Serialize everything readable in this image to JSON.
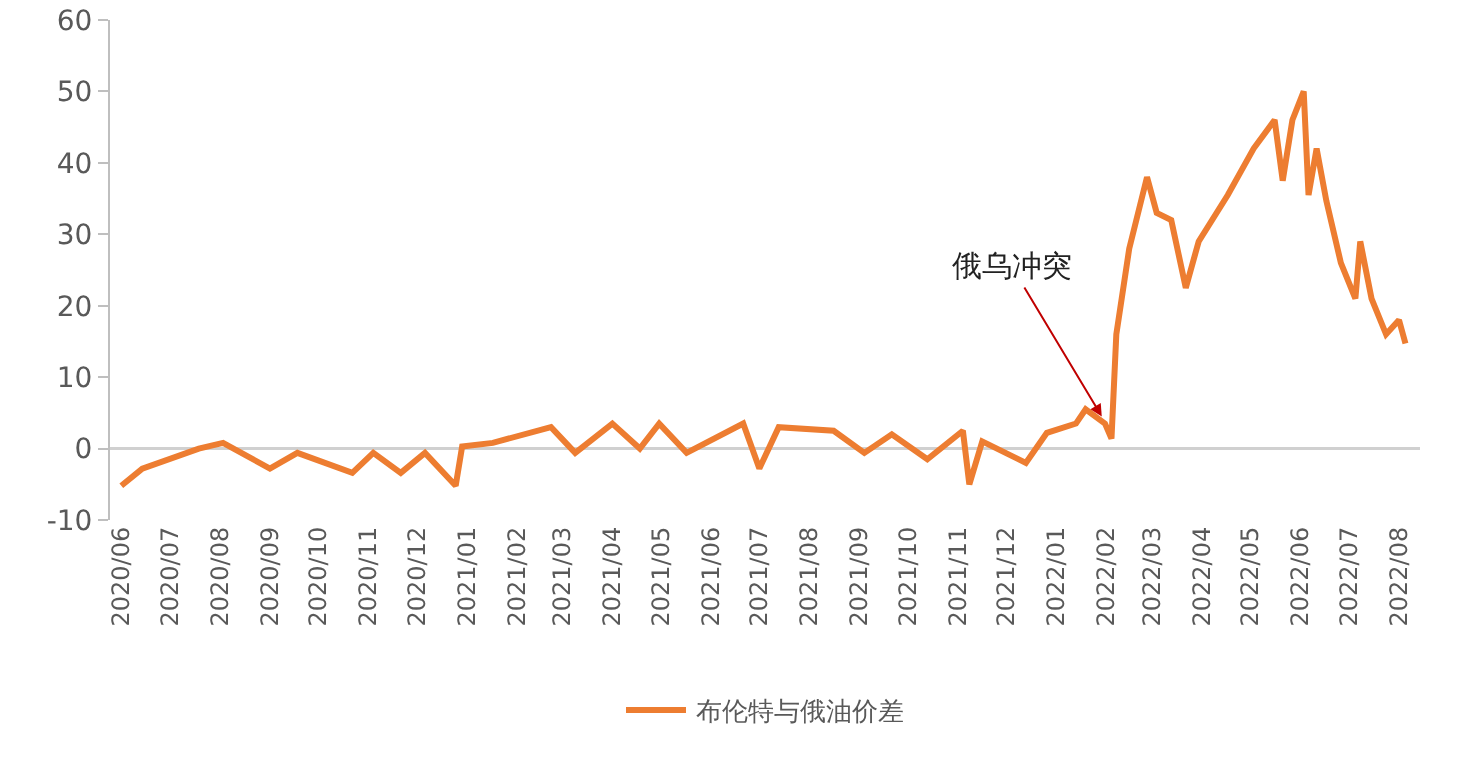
{
  "chart_data": {
    "type": "line",
    "legend": "bottom",
    "grid": false,
    "marker": "none",
    "line_style": "solid",
    "x": [
      "2020-06-15",
      "2020-06-28",
      "2020-08-02",
      "2020-08-17",
      "2020-09-15",
      "2020-10-02",
      "2020-11-05",
      "2020-11-18",
      "2020-12-05",
      "2020-12-20",
      "2021-01-08",
      "2021-01-12",
      "2021-01-31",
      "2021-03-08",
      "2021-03-23",
      "2021-04-15",
      "2021-05-02",
      "2021-05-14",
      "2021-05-31",
      "2021-07-05",
      "2021-07-15",
      "2021-07-27",
      "2021-08-30",
      "2021-09-18",
      "2021-10-05",
      "2021-10-27",
      "2021-11-18",
      "2021-11-22",
      "2021-11-30",
      "2021-12-27",
      "2022-01-09",
      "2022-01-27",
      "2022-02-02",
      "2022-02-14",
      "2022-02-18",
      "2022-02-21",
      "2022-03-01",
      "2022-03-12",
      "2022-03-18",
      "2022-03-27",
      "2022-04-05",
      "2022-04-13",
      "2022-05-01",
      "2022-05-17",
      "2022-05-30",
      "2022-06-04",
      "2022-06-10",
      "2022-06-17",
      "2022-06-20",
      "2022-06-25",
      "2022-07-01",
      "2022-07-10",
      "2022-07-19",
      "2022-07-22",
      "2022-07-29",
      "2022-08-07",
      "2022-08-15",
      "2022-08-19"
    ],
    "series": [
      {
        "name": "布伦特与俄油价差",
        "color": "#ed7d31",
        "values": [
          -5.2,
          -2.8,
          0,
          0.8,
          -2.8,
          -0.6,
          -3.4,
          -0.6,
          -3.4,
          -0.6,
          -5.2,
          0.3,
          0.8,
          3,
          -0.6,
          3.5,
          0,
          3.5,
          -0.6,
          3.5,
          -2.8,
          3,
          2.5,
          -0.6,
          2,
          -1.5,
          2.5,
          -5,
          1,
          -2,
          2.2,
          3.5,
          5.5,
          3.5,
          1.4,
          16,
          28,
          38,
          33,
          32,
          22.5,
          29,
          35.5,
          42,
          46,
          37.5,
          46,
          50,
          35.5,
          42,
          34.7,
          26,
          21,
          29,
          21,
          16,
          18,
          14.7
        ]
      }
    ],
    "xlim": [
      "2020-06-08",
      "2022-08-28"
    ],
    "xticks": [
      {
        "value": "2020-06-15",
        "label": "2020/06"
      },
      {
        "value": "2020-07-15",
        "label": "2020/07"
      },
      {
        "value": "2020-08-15",
        "label": "2020/08"
      },
      {
        "value": "2020-09-15",
        "label": "2020/09"
      },
      {
        "value": "2020-10-15",
        "label": "2020/10"
      },
      {
        "value": "2020-11-15",
        "label": "2020/11"
      },
      {
        "value": "2020-12-15",
        "label": "2020/12"
      },
      {
        "value": "2021-01-15",
        "label": "2021/01"
      },
      {
        "value": "2021-02-15",
        "label": "2021/02"
      },
      {
        "value": "2021-03-15",
        "label": "2021/03"
      },
      {
        "value": "2021-04-15",
        "label": "2021/04"
      },
      {
        "value": "2021-05-15",
        "label": "2021/05"
      },
      {
        "value": "2021-06-15",
        "label": "2021/06"
      },
      {
        "value": "2021-07-15",
        "label": "2021/07"
      },
      {
        "value": "2021-08-15",
        "label": "2021/08"
      },
      {
        "value": "2021-09-15",
        "label": "2021/09"
      },
      {
        "value": "2021-10-15",
        "label": "2021/10"
      },
      {
        "value": "2021-11-15",
        "label": "2021/11"
      },
      {
        "value": "2021-12-15",
        "label": "2021/12"
      },
      {
        "value": "2022-01-15",
        "label": "2022/01"
      },
      {
        "value": "2022-02-15",
        "label": "2022/02"
      },
      {
        "value": "2022-03-15",
        "label": "2022/03"
      },
      {
        "value": "2022-04-15",
        "label": "2022/04"
      },
      {
        "value": "2022-05-15",
        "label": "2022/05"
      },
      {
        "value": "2022-06-15",
        "label": "2022/06"
      },
      {
        "value": "2022-07-15",
        "label": "2022/07"
      },
      {
        "value": "2022-08-15",
        "label": "2022/08"
      }
    ],
    "ref_lines": [
      {
        "axis": "y",
        "value": 0,
        "color": "#d0d0d0"
      }
    ],
    "ylim": [
      -10,
      60
    ],
    "yticks": [
      -10,
      0,
      10,
      20,
      30,
      40,
      50,
      60
    ],
    "annotations": [
      {
        "text": "俄乌冲突",
        "x": "2022-02-12",
        "y": 4.5
      }
    ]
  }
}
